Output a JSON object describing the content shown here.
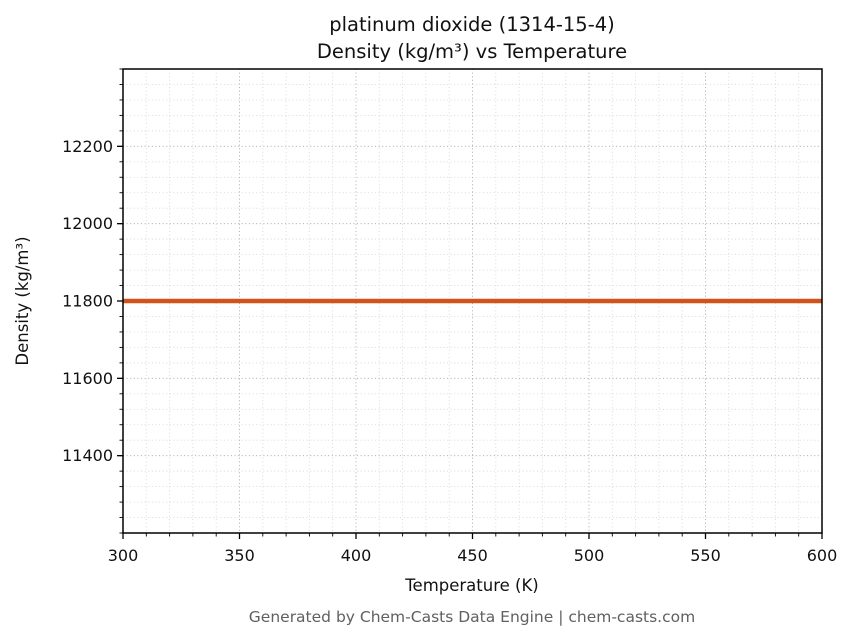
{
  "title": {
    "line1": "platinum dioxide (1314-15-4)",
    "line2": "Density (kg/m³) vs Temperature"
  },
  "footer": "Generated by Chem-Casts Data Engine | chem-casts.com",
  "chart_data": {
    "type": "line",
    "title": "platinum dioxide (1314-15-4) Density (kg/m³) vs Temperature",
    "xlabel": "Temperature (K)",
    "ylabel": "Density (kg/m³)",
    "x": [
      300,
      600
    ],
    "series": [
      {
        "name": "Density",
        "values": [
          11800,
          11800
        ]
      }
    ],
    "xlim": [
      300,
      600
    ],
    "ylim": [
      11200,
      12400
    ],
    "xticks": [
      300,
      350,
      400,
      450,
      500,
      550,
      600
    ],
    "yticks": [
      11400,
      11600,
      11800,
      12000,
      12200
    ],
    "x_minor_step": 10,
    "y_minor_step": 40,
    "grid": true,
    "legend": "none",
    "line_color": "#d2521c",
    "line_width": 4.5
  }
}
